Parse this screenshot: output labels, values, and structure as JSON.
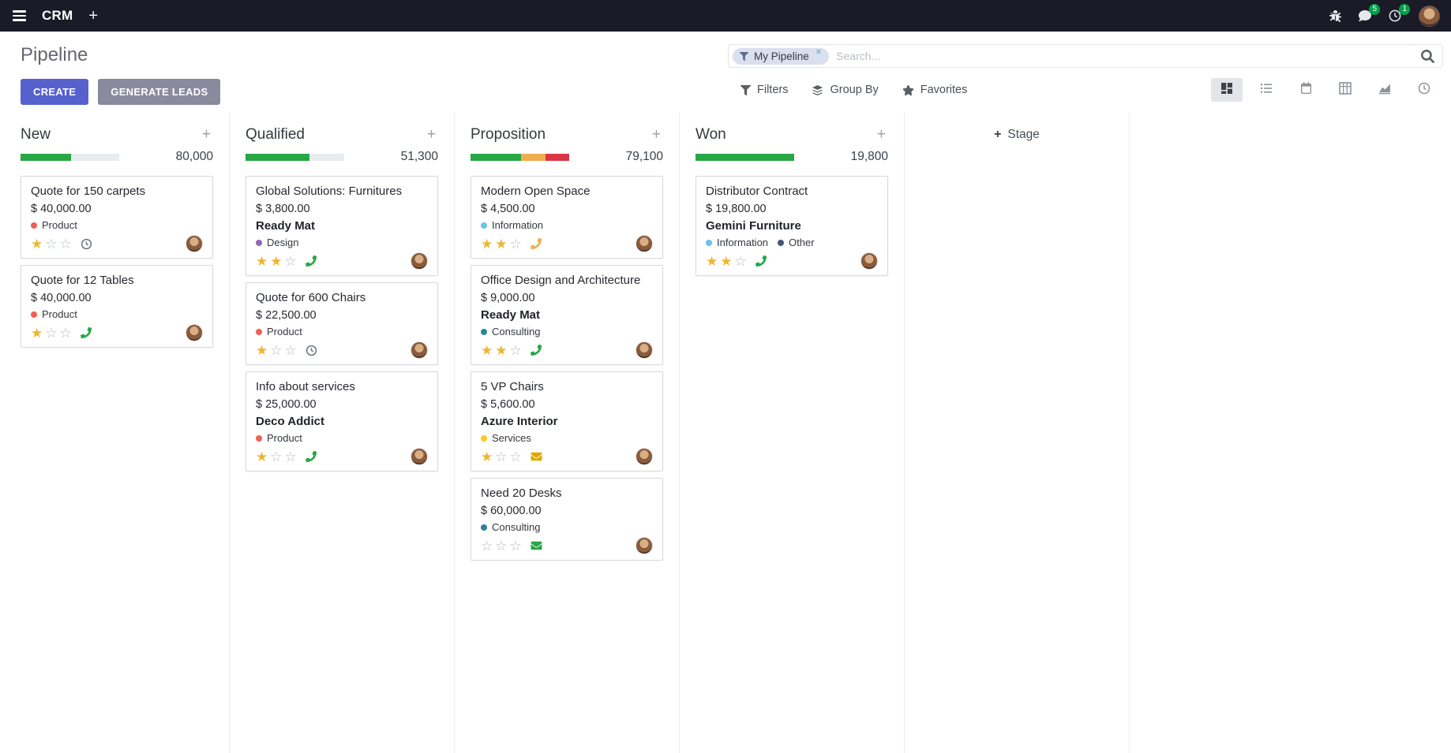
{
  "colors": {
    "primary": "#5661ce",
    "secondary": "#8a8a9e",
    "badge": "#00a04a",
    "star_gold": "#ecb62f"
  },
  "navbar": {
    "app_name": "CRM",
    "add_label": "+",
    "messages_badge": "5",
    "activities_badge": "1"
  },
  "control_panel": {
    "breadcrumb": "Pipeline",
    "buttons": {
      "create": "CREATE",
      "generate_leads": "GENERATE LEADS"
    },
    "search": {
      "facet": "My Pipeline",
      "remove": "✕",
      "placeholder": "Search..."
    },
    "filters": "Filters",
    "group_by": "Group By",
    "favorites": "Favorites"
  },
  "kanban": {
    "quick_add": "+",
    "add_stage": "Stage",
    "columns": [
      {
        "name": "New",
        "total": "80,000",
        "progress": [
          {
            "color": "#28a745",
            "width": "51%"
          }
        ],
        "cards": [
          {
            "title": "Quote for 150 carpets",
            "amount": "$ 40,000.00",
            "tags": [
              {
                "label": "Product",
                "color": "#F06050"
              }
            ],
            "stars": 1,
            "activity": {
              "type": "clock",
              "color": "#6c757d"
            }
          },
          {
            "title": "Quote for 12 Tables",
            "amount": "$ 40,000.00",
            "tags": [
              {
                "label": "Product",
                "color": "#F06050"
              }
            ],
            "stars": 1,
            "activity": {
              "type": "phone",
              "color": "#28a745"
            }
          }
        ]
      },
      {
        "name": "Qualified",
        "total": "51,300",
        "progress": [
          {
            "color": "#28a745",
            "width": "65%"
          }
        ],
        "cards": [
          {
            "title": "Global Solutions: Furnitures",
            "amount": "$ 3,800.00",
            "partner": "Ready Mat",
            "tags": [
              {
                "label": "Design",
                "color": "#9365B8"
              }
            ],
            "stars": 2,
            "activity": {
              "type": "phone",
              "color": "#28a745"
            }
          },
          {
            "title": "Quote for 600 Chairs",
            "amount": "$ 22,500.00",
            "tags": [
              {
                "label": "Product",
                "color": "#F06050"
              }
            ],
            "stars": 1,
            "activity": {
              "type": "clock",
              "color": "#6c757d"
            }
          },
          {
            "title": "Info about services",
            "amount": "$ 25,000.00",
            "partner": "Deco Addict",
            "tags": [
              {
                "label": "Product",
                "color": "#F06050"
              }
            ],
            "stars": 1,
            "activity": {
              "type": "phone",
              "color": "#28a745"
            }
          }
        ]
      },
      {
        "name": "Proposition",
        "total": "79,100",
        "progress": [
          {
            "color": "#28a745",
            "width": "51%"
          },
          {
            "color": "#f0ad4e",
            "width": "25%"
          },
          {
            "color": "#dc3545",
            "width": "24%"
          }
        ],
        "cards": [
          {
            "title": "Modern Open Space",
            "amount": "$ 4,500.00",
            "tags": [
              {
                "label": "Information",
                "color": "#6CC1ED"
              }
            ],
            "stars": 2,
            "activity": {
              "type": "phone",
              "color": "#f0ad4e"
            }
          },
          {
            "title": "Office Design and Architecture",
            "amount": "$ 9,000.00",
            "partner": "Ready Mat",
            "tags": [
              {
                "label": "Consulting",
                "color": "#2C8397"
              }
            ],
            "stars": 2,
            "activity": {
              "type": "phone",
              "color": "#28a745"
            }
          },
          {
            "title": "5 VP Chairs",
            "amount": "$ 5,600.00",
            "partner": "Azure Interior",
            "tags": [
              {
                "label": "Services",
                "color": "#F7CD1F"
              }
            ],
            "stars": 1,
            "activity": {
              "type": "envelope",
              "color": "#e0a800"
            }
          },
          {
            "title": "Need 20 Desks",
            "amount": "$ 60,000.00",
            "tags": [
              {
                "label": "Consulting",
                "color": "#2C8397"
              }
            ],
            "stars": 0,
            "activity": {
              "type": "envelope",
              "color": "#28a745"
            }
          }
        ]
      },
      {
        "name": "Won",
        "total": "19,800",
        "progress": [
          {
            "color": "#28a745",
            "width": "100%"
          }
        ],
        "cards": [
          {
            "title": "Distributor Contract",
            "amount": "$ 19,800.00",
            "partner": "Gemini Furniture",
            "tags": [
              {
                "label": "Information",
                "color": "#6CC1ED"
              },
              {
                "label": "Other",
                "color": "#475577"
              }
            ],
            "stars": 2,
            "activity": {
              "type": "phone",
              "color": "#28a745"
            }
          }
        ]
      }
    ]
  }
}
